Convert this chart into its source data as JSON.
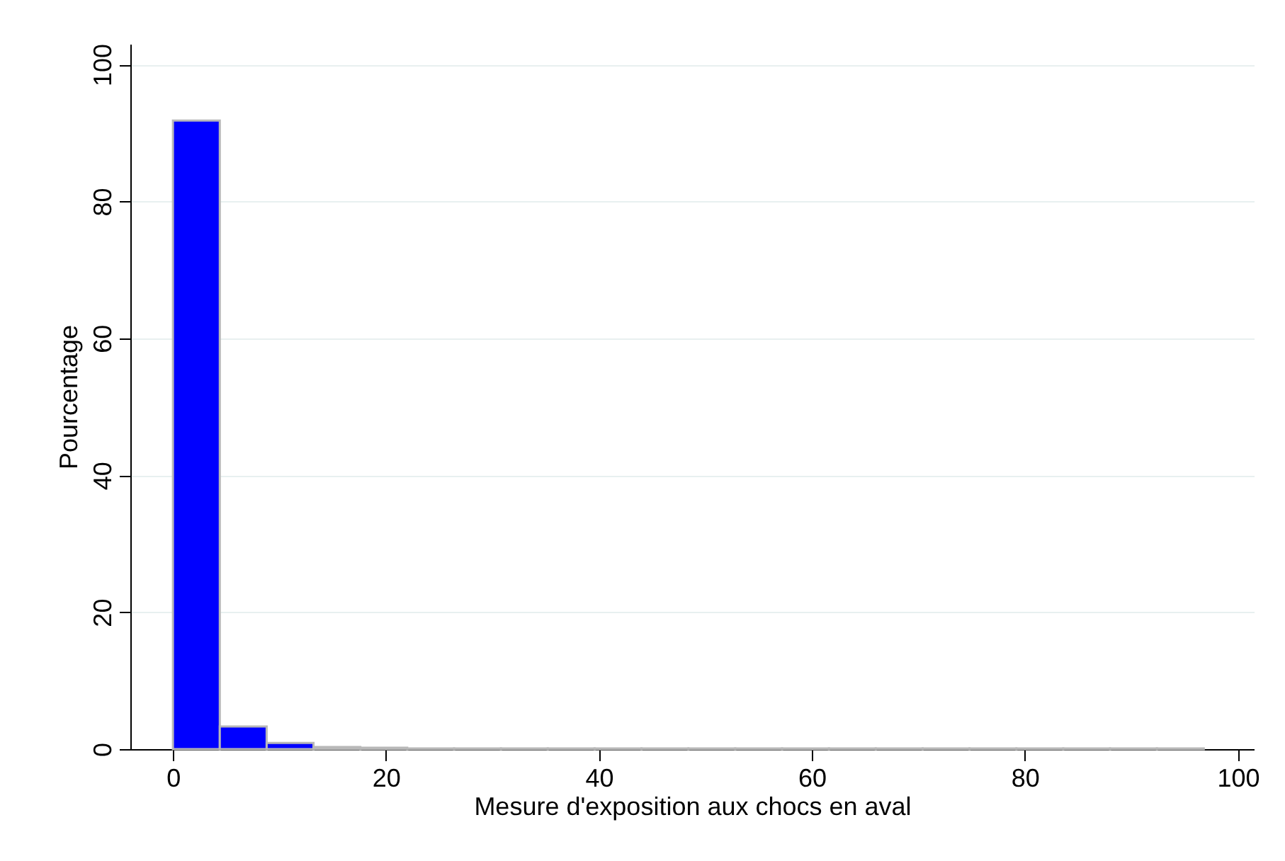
{
  "chart_data": {
    "type": "histogram",
    "xlabel": "Mesure d'exposition aux chocs en aval",
    "ylabel": "Pourcentage",
    "bins": [
      0,
      4.4,
      8.8,
      13.2,
      17.6,
      22,
      26.4,
      30.8,
      35.2,
      39.6,
      44,
      48.4,
      52.8,
      57.2,
      61.6,
      66,
      70.4,
      74.8,
      79.2,
      83.6,
      88,
      92.4,
      96.8
    ],
    "values": [
      91.8,
      3.3,
      0.9,
      0.3,
      0.2,
      0.1,
      0.1,
      0.1,
      0.1,
      0.1,
      0.1,
      0.1,
      0.1,
      0.1,
      0.1,
      0.1,
      0.1,
      0.1,
      0.1,
      0.1,
      0.1,
      0.1
    ],
    "color": "#0000ff",
    "xlim": [
      -4,
      101.5
    ],
    "xticks": [
      0,
      20,
      40,
      60,
      80,
      100
    ],
    "ylim": [
      0,
      103
    ],
    "yticks": [
      0,
      20,
      40,
      60,
      80,
      100
    ],
    "grid": "y"
  }
}
